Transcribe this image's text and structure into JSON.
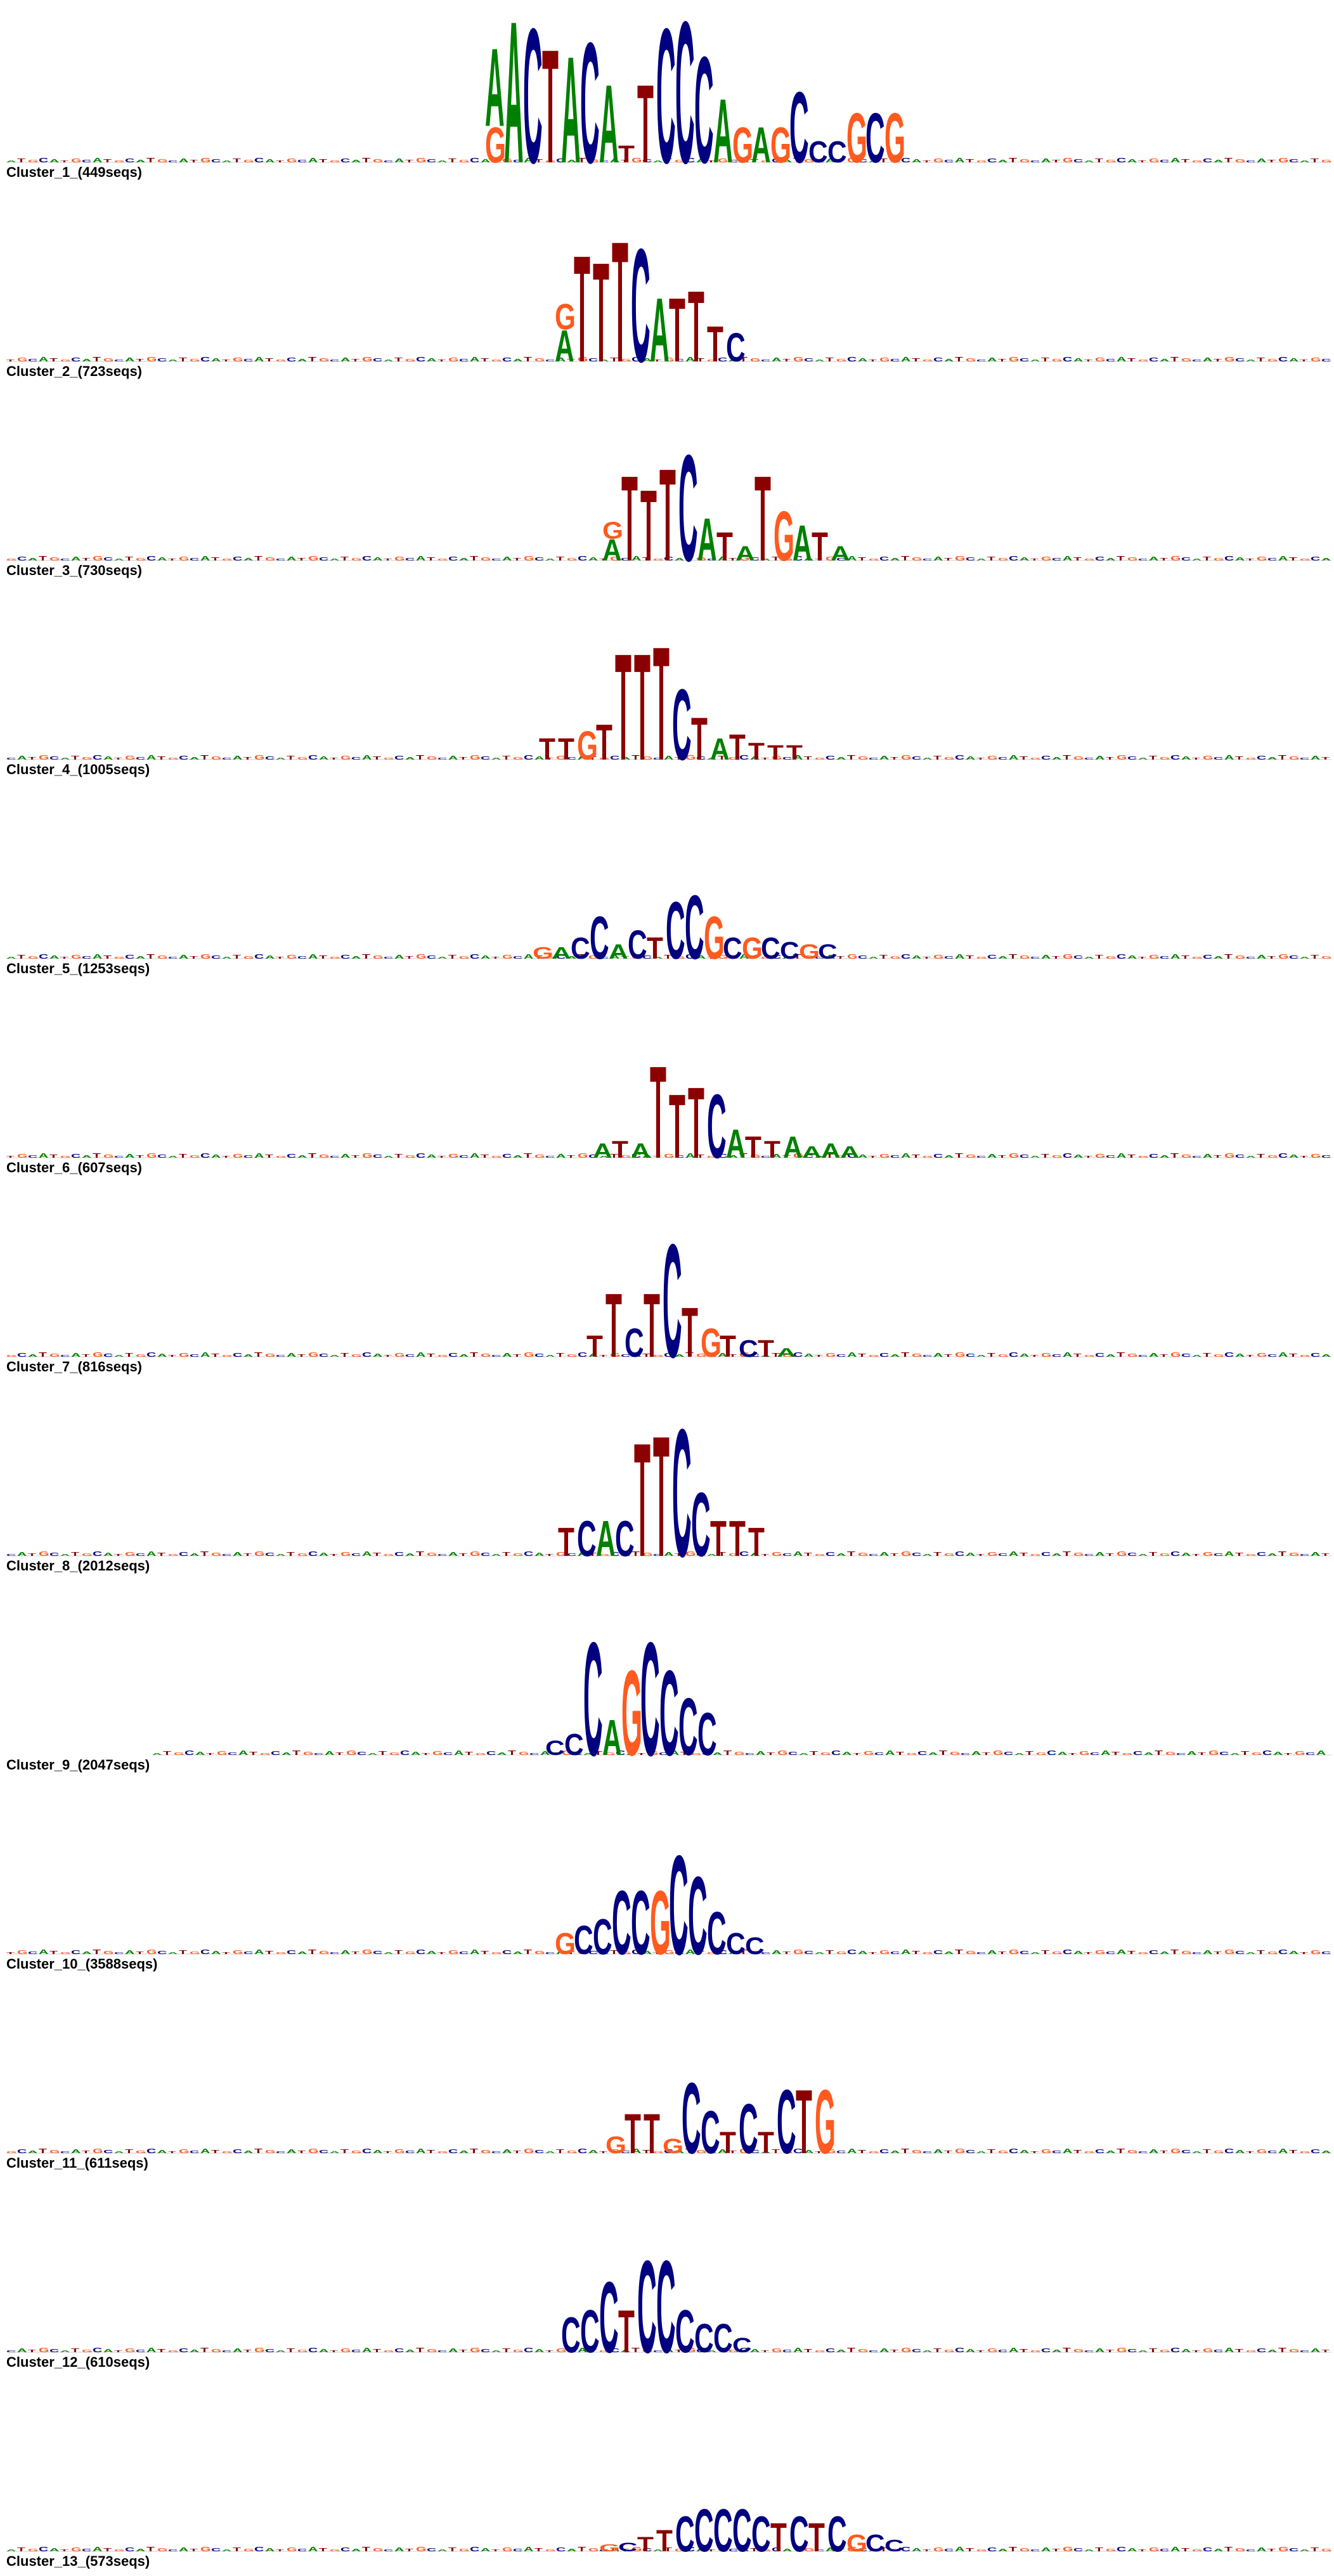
{
  "colors": {
    "A": "#008000",
    "C": "#000080",
    "G": "#ff5a1f",
    "T": "#8b0000"
  },
  "clusters": [
    {
      "label": "Cluster_1_(449seqs)",
      "columns": [
        [
          [
            "G",
            0.25
          ],
          [
            "A",
            0.55
          ]
        ],
        [
          [
            "A",
            1.0
          ]
        ],
        [
          [
            "C",
            0.95
          ]
        ],
        [
          [
            "T",
            0.8
          ]
        ],
        [
          [
            "A",
            0.75
          ]
        ],
        [
          [
            "C",
            0.85
          ]
        ],
        [
          [
            "A",
            0.55
          ]
        ],
        [
          [
            "T",
            0.12
          ]
        ],
        [
          [
            "T",
            0.55
          ]
        ],
        [
          [
            "C",
            0.95
          ]
        ],
        [
          [
            "C",
            1.0
          ]
        ],
        [
          [
            "C",
            0.75
          ]
        ],
        [
          [
            "A",
            0.45
          ]
        ],
        [
          [
            "G",
            0.25
          ]
        ],
        [
          [
            "A",
            0.25
          ]
        ],
        [
          [
            "G",
            0.25
          ]
        ],
        [
          [
            "C",
            0.5
          ]
        ],
        [
          [
            "C",
            0.15
          ]
        ],
        [
          [
            "C",
            0.15
          ]
        ],
        [
          [
            "G",
            0.35
          ]
        ],
        [
          [
            "C",
            0.35
          ]
        ],
        [
          [
            "G",
            0.35
          ]
        ]
      ]
    },
    {
      "label": "Cluster_2_(723seqs)",
      "columns": [
        [
          [
            "A",
            0.22
          ],
          [
            "G",
            0.18
          ]
        ],
        [
          [
            "T",
            0.75
          ]
        ],
        [
          [
            "T",
            0.7
          ]
        ],
        [
          [
            "T",
            0.85
          ]
        ],
        [
          [
            "C",
            0.8
          ]
        ],
        [
          [
            "A",
            0.45
          ]
        ],
        [
          [
            "T",
            0.45
          ]
        ],
        [
          [
            "T",
            0.5
          ]
        ],
        [
          [
            "T",
            0.25
          ]
        ],
        [
          [
            "C",
            0.2
          ]
        ]
      ]
    },
    {
      "label": "Cluster_3_(730seqs)",
      "columns": [
        [
          [
            "A",
            0.15
          ],
          [
            "G",
            0.12
          ]
        ],
        [
          [
            "T",
            0.6
          ]
        ],
        [
          [
            "T",
            0.5
          ]
        ],
        [
          [
            "T",
            0.65
          ]
        ],
        [
          [
            "C",
            0.75
          ]
        ],
        [
          [
            "A",
            0.3
          ]
        ],
        [
          [
            "T",
            0.2
          ]
        ],
        [
          [
            "A",
            0.1
          ]
        ],
        [
          [
            "T",
            0.6
          ]
        ],
        [
          [
            "G",
            0.35
          ]
        ],
        [
          [
            "A",
            0.25
          ]
        ],
        [
          [
            "T",
            0.2
          ]
        ],
        [
          [
            "A",
            0.1
          ]
        ]
      ]
    },
    {
      "label": "Cluster_4_(1005seqs)",
      "columns": [
        [
          [
            "T",
            0.15
          ]
        ],
        [
          [
            "T",
            0.15
          ]
        ],
        [
          [
            "G",
            0.2
          ]
        ],
        [
          [
            "T",
            0.25
          ]
        ],
        [
          [
            "T",
            0.75
          ]
        ],
        [
          [
            "T",
            0.75
          ]
        ],
        [
          [
            "T",
            0.8
          ]
        ],
        [
          [
            "C",
            0.5
          ]
        ],
        [
          [
            "T",
            0.3
          ]
        ],
        [
          [
            "A",
            0.15
          ]
        ],
        [
          [
            "T",
            0.18
          ]
        ],
        [
          [
            "T",
            0.12
          ]
        ],
        [
          [
            "T",
            0.1
          ]
        ],
        [
          [
            "T",
            0.1
          ]
        ]
      ]
    },
    {
      "label": "Cluster_5_(1253seqs)",
      "columns": [
        [
          [
            "G",
            0.08
          ]
        ],
        [
          [
            "A",
            0.08
          ]
        ],
        [
          [
            "C",
            0.15
          ]
        ],
        [
          [
            "C",
            0.3
          ]
        ],
        [
          [
            "A",
            0.1
          ]
        ],
        [
          [
            "C",
            0.2
          ]
        ],
        [
          [
            "T",
            0.15
          ]
        ],
        [
          [
            "C",
            0.4
          ]
        ],
        [
          [
            "C",
            0.45
          ]
        ],
        [
          [
            "G",
            0.3
          ]
        ],
        [
          [
            "C",
            0.15
          ]
        ],
        [
          [
            "G",
            0.15
          ]
        ],
        [
          [
            "C",
            0.15
          ]
        ],
        [
          [
            "C",
            0.12
          ]
        ],
        [
          [
            "G",
            0.1
          ]
        ],
        [
          [
            "C",
            0.1
          ]
        ]
      ]
    },
    {
      "label": "Cluster_6_(607seqs)",
      "columns": [
        [
          [
            "A",
            0.1
          ]
        ],
        [
          [
            "T",
            0.12
          ]
        ],
        [
          [
            "A",
            0.1
          ]
        ],
        [
          [
            "T",
            0.65
          ]
        ],
        [
          [
            "T",
            0.45
          ]
        ],
        [
          [
            "T",
            0.5
          ]
        ],
        [
          [
            "C",
            0.45
          ]
        ],
        [
          [
            "A",
            0.2
          ]
        ],
        [
          [
            "T",
            0.15
          ]
        ],
        [
          [
            "T",
            0.12
          ]
        ],
        [
          [
            "A",
            0.15
          ]
        ],
        [
          [
            "A",
            0.08
          ]
        ],
        [
          [
            "A",
            0.1
          ]
        ],
        [
          [
            "A",
            0.08
          ]
        ]
      ]
    },
    {
      "label": "Cluster_7_(816seqs)",
      "columns": [
        [
          [
            "T",
            0.15
          ]
        ],
        [
          [
            "T",
            0.45
          ]
        ],
        [
          [
            "C",
            0.2
          ]
        ],
        [
          [
            "T",
            0.45
          ]
        ],
        [
          [
            "C",
            0.8
          ]
        ],
        [
          [
            "T",
            0.35
          ]
        ],
        [
          [
            "G",
            0.2
          ]
        ],
        [
          [
            "T",
            0.15
          ]
        ],
        [
          [
            "C",
            0.12
          ]
        ],
        [
          [
            "T",
            0.12
          ]
        ],
        [
          [
            "A",
            0.06
          ]
        ]
      ]
    },
    {
      "label": "Cluster_8_(2012seqs)",
      "columns": [
        [
          [
            "T",
            0.2
          ]
        ],
        [
          [
            "C",
            0.25
          ]
        ],
        [
          [
            "A",
            0.25
          ]
        ],
        [
          [
            "C",
            0.25
          ]
        ],
        [
          [
            "T",
            0.8
          ]
        ],
        [
          [
            "T",
            0.85
          ]
        ],
        [
          [
            "C",
            0.9
          ]
        ],
        [
          [
            "C",
            0.45
          ]
        ],
        [
          [
            "T",
            0.25
          ]
        ],
        [
          [
            "T",
            0.25
          ]
        ],
        [
          [
            "T",
            0.2
          ]
        ]
      ]
    },
    {
      "label": "Cluster_9_(2047seqs)",
      "columns": [
        [
          [
            "C",
            0.1
          ]
        ],
        [
          [
            "C",
            0.15
          ]
        ],
        [
          [
            "C",
            0.8
          ]
        ],
        [
          [
            "A",
            0.25
          ]
        ],
        [
          [
            "G",
            0.6
          ]
        ],
        [
          [
            "C",
            0.8
          ]
        ],
        [
          [
            "C",
            0.6
          ]
        ],
        [
          [
            "C",
            0.4
          ]
        ],
        [
          [
            "C",
            0.3
          ]
        ]
      ]
    },
    {
      "label": "Cluster_10_(3588seqs)",
      "columns": [
        [
          [
            "G",
            0.15
          ]
        ],
        [
          [
            "C",
            0.2
          ]
        ],
        [
          [
            "C",
            0.25
          ]
        ],
        [
          [
            "C",
            0.45
          ]
        ],
        [
          [
            "C",
            0.45
          ]
        ],
        [
          [
            "G",
            0.45
          ]
        ],
        [
          [
            "C",
            0.7
          ]
        ],
        [
          [
            "C",
            0.55
          ]
        ],
        [
          [
            "C",
            0.3
          ]
        ],
        [
          [
            "C",
            0.15
          ]
        ],
        [
          [
            "C",
            0.12
          ]
        ]
      ]
    },
    {
      "label": "Cluster_11_(611seqs)",
      "columns": [
        [
          [
            "G",
            0.12
          ]
        ],
        [
          [
            "T",
            0.28
          ]
        ],
        [
          [
            "T",
            0.28
          ]
        ],
        [
          [
            "G",
            0.1
          ]
        ],
        [
          [
            "C",
            0.5
          ]
        ],
        [
          [
            "C",
            0.3
          ]
        ],
        [
          [
            "T",
            0.15
          ]
        ],
        [
          [
            "C",
            0.35
          ]
        ],
        [
          [
            "T",
            0.15
          ]
        ],
        [
          [
            "C",
            0.45
          ]
        ],
        [
          [
            "T",
            0.45
          ]
        ],
        [
          [
            "G",
            0.45
          ]
        ]
      ]
    },
    {
      "label": "Cluster_12_(610seqs)",
      "columns": [
        [
          [
            "C",
            0.25
          ]
        ],
        [
          [
            "C",
            0.3
          ]
        ],
        [
          [
            "C",
            0.5
          ]
        ],
        [
          [
            "T",
            0.3
          ]
        ],
        [
          [
            "C",
            0.65
          ]
        ],
        [
          [
            "C",
            0.65
          ]
        ],
        [
          [
            "C",
            0.3
          ]
        ],
        [
          [
            "C",
            0.2
          ]
        ],
        [
          [
            "C",
            0.2
          ]
        ],
        [
          [
            "C",
            0.1
          ]
        ]
      ]
    },
    {
      "label": "Cluster_13_(573seqs)",
      "columns": [
        [
          [
            "G",
            0.05
          ]
        ],
        [
          [
            "C",
            0.06
          ]
        ],
        [
          [
            "T",
            0.1
          ]
        ],
        [
          [
            "T",
            0.15
          ]
        ],
        [
          [
            "C",
            0.25
          ]
        ],
        [
          [
            "C",
            0.3
          ]
        ],
        [
          [
            "C",
            0.3
          ]
        ],
        [
          [
            "C",
            0.3
          ]
        ],
        [
          [
            "C",
            0.25
          ]
        ],
        [
          [
            "T",
            0.2
          ]
        ],
        [
          [
            "C",
            0.25
          ]
        ],
        [
          [
            "T",
            0.2
          ]
        ],
        [
          [
            "C",
            0.25
          ]
        ],
        [
          [
            "G",
            0.12
          ]
        ],
        [
          [
            "C",
            0.12
          ]
        ],
        [
          [
            "C",
            0.08
          ]
        ]
      ]
    }
  ]
}
